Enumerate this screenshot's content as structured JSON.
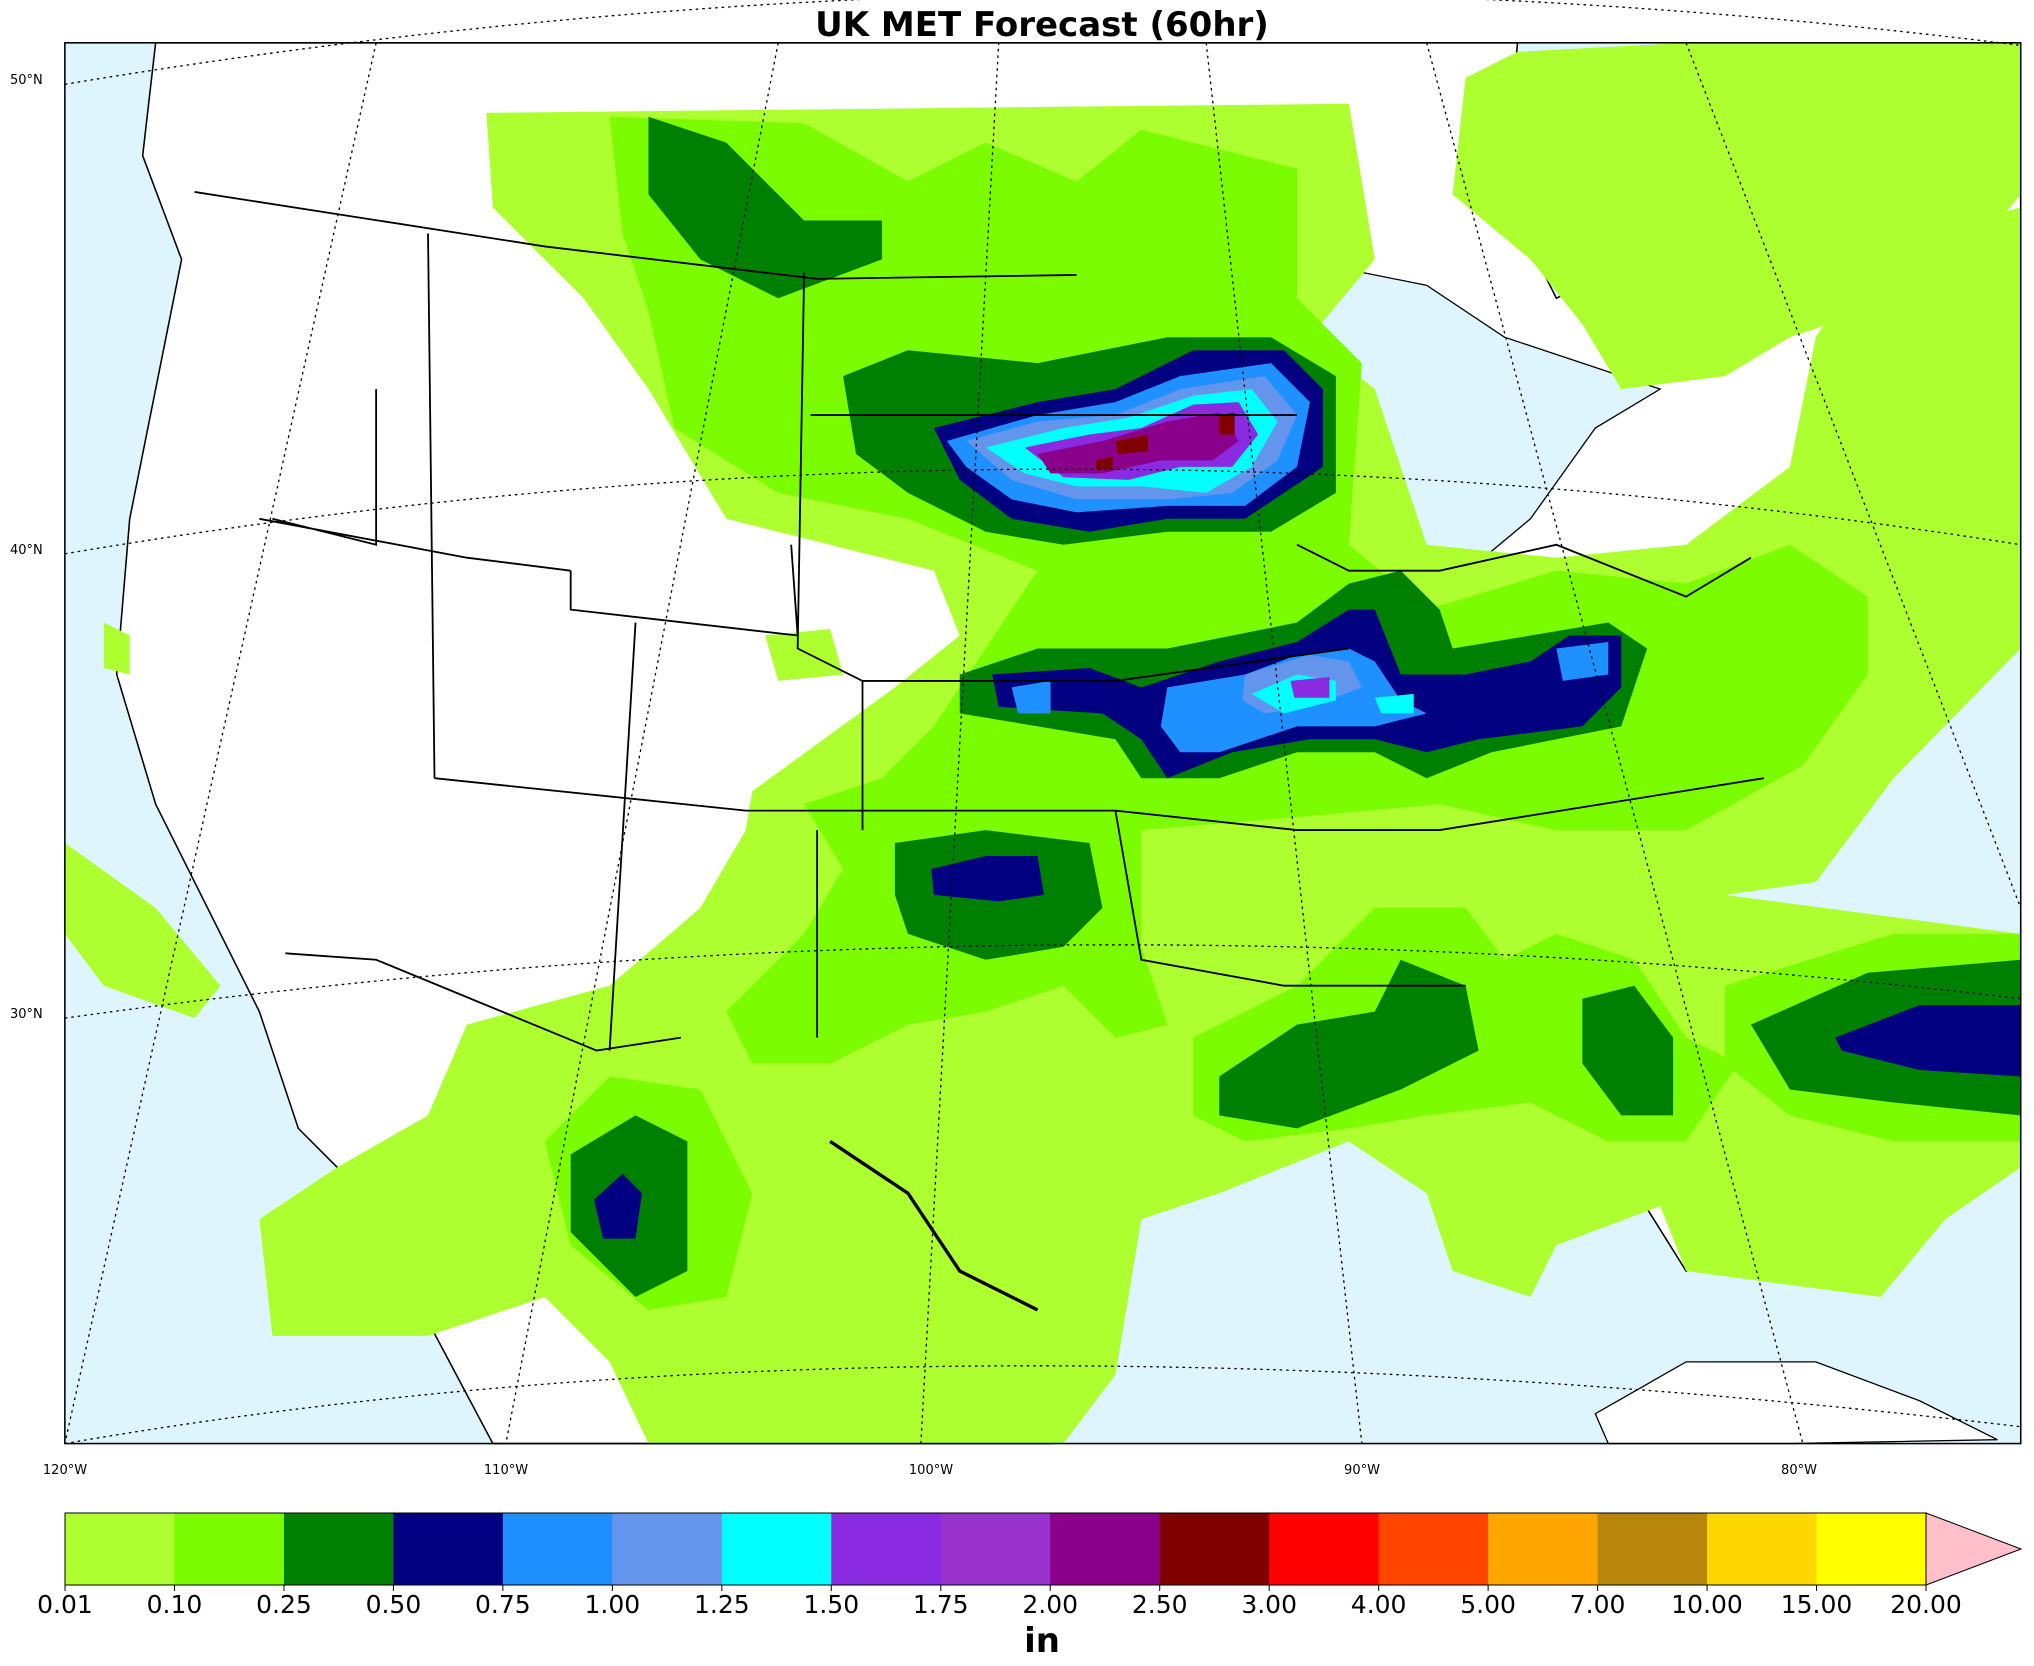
{
  "title": "UK MET Forecast (60hr)",
  "lat_labels": [
    "50°N",
    "40°N",
    "30°N"
  ],
  "lon_labels": [
    "120°W",
    "110°W",
    "100°W",
    "90°W",
    "80°W"
  ],
  "colorbar": {
    "levels": [
      "0.01",
      "0.10",
      "0.25",
      "0.50",
      "0.75",
      "1.00",
      "1.25",
      "1.50",
      "1.75",
      "2.00",
      "2.50",
      "3.00",
      "4.00",
      "5.00",
      "7.00",
      "10.00",
      "15.00",
      "20.00"
    ],
    "colors": [
      "#adff2f",
      "#7cfc00",
      "#008000",
      "#000080",
      "#1e90ff",
      "#6495ed",
      "#00ffff",
      "#8a2be2",
      "#9932cc",
      "#8b008b",
      "#800000",
      "#ff0000",
      "#ff4500",
      "#ffa500",
      "#b8860b",
      "#ffd700",
      "#ffff00"
    ],
    "extend_color": "#ffc0cb",
    "unit": "in"
  }
}
